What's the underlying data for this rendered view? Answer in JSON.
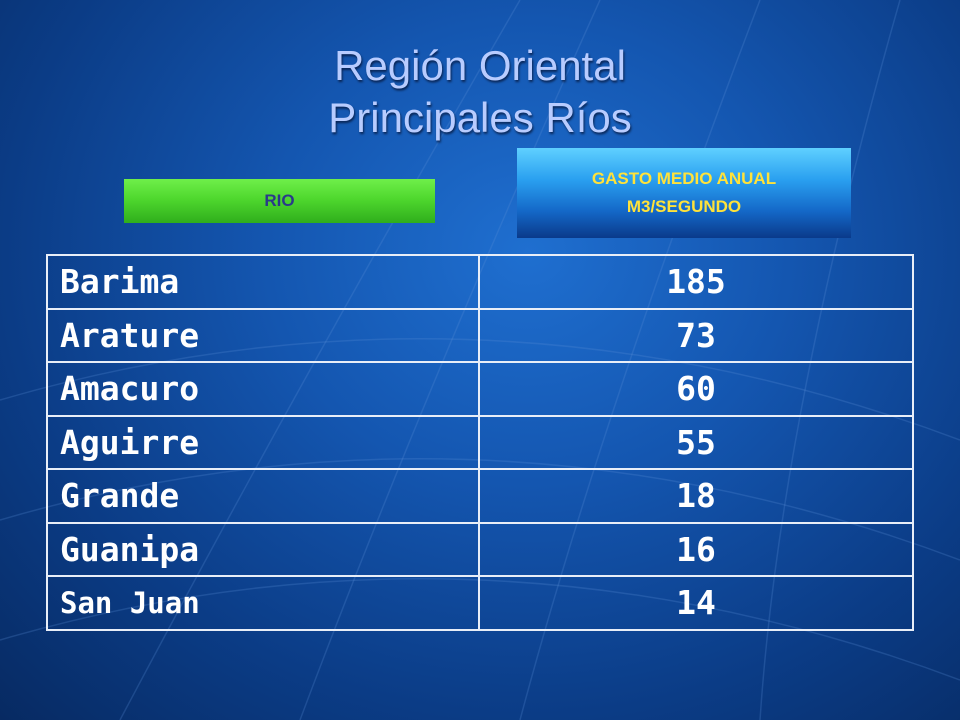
{
  "title": {
    "line1": "Región Oriental",
    "line2": "Principales Ríos"
  },
  "labels": {
    "rio": "RIO",
    "gasto_line1": "GASTO MEDIO ANUAL",
    "gasto_line2": "M3/SEGUNDO"
  },
  "rows": [
    {
      "name": "Barima",
      "value": "185"
    },
    {
      "name": "Arature",
      "value": "73"
    },
    {
      "name": "Amacuro",
      "value": "60"
    },
    {
      "name": "Aguirre",
      "value": "55"
    },
    {
      "name": "Grande",
      "value": "18"
    },
    {
      "name": "Guanipa",
      "value": "16"
    },
    {
      "name": "San Juan",
      "value": "14"
    }
  ],
  "colors": {
    "background": "#1456b0",
    "title_text": "#b8ccff",
    "rio_label_bg": "#4fd82e",
    "gasto_label_text": "#ffe23a"
  }
}
